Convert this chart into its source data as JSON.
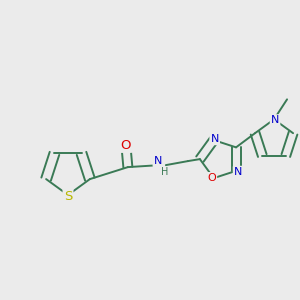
{
  "bg": "#ebebeb",
  "bond_color": "#3a7a55",
  "bw": 1.4,
  "atom_colors": {
    "O": "#dd0000",
    "N": "#0000cc",
    "S": "#b8b800",
    "default": "#3a7a55"
  },
  "fs": 8.0,
  "figsize": [
    3.0,
    3.0
  ],
  "dpi": 100
}
